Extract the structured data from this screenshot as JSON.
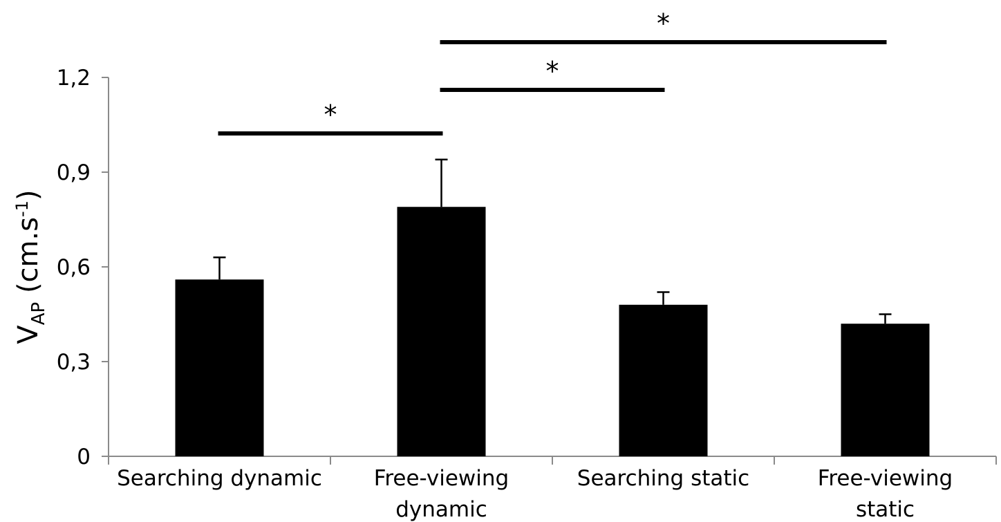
{
  "chart_data": {
    "type": "bar",
    "categories": [
      [
        "Searching dynamic"
      ],
      [
        "Free-viewing",
        "dynamic"
      ],
      [
        "Searching static"
      ],
      [
        "Free-viewing",
        "static"
      ]
    ],
    "values": [
      0.56,
      0.79,
      0.48,
      0.42
    ],
    "errors": [
      0.07,
      0.15,
      0.04,
      0.03
    ],
    "bar_color": "#000000",
    "ylim": [
      0,
      1.2
    ],
    "yticks": [
      {
        "value": 0,
        "label": "0"
      },
      {
        "value": 0.3,
        "label": "0,3"
      },
      {
        "value": 0.6,
        "label": "0,6"
      },
      {
        "value": 0.9,
        "label": "0,9"
      },
      {
        "value": 1.2,
        "label": "1,2"
      }
    ],
    "ylabel": {
      "main": "V",
      "subscript": "AP",
      "unit_prefix": " (cm.s",
      "superscript": "-1",
      "unit_suffix": ")"
    },
    "xlabel": "",
    "title": "",
    "grid": false,
    "significance": [
      {
        "from": 0,
        "to": 1,
        "label": "*"
      },
      {
        "from": 1,
        "to": 2,
        "label": "*"
      },
      {
        "from": 1,
        "to": 3,
        "label": "*"
      }
    ]
  }
}
